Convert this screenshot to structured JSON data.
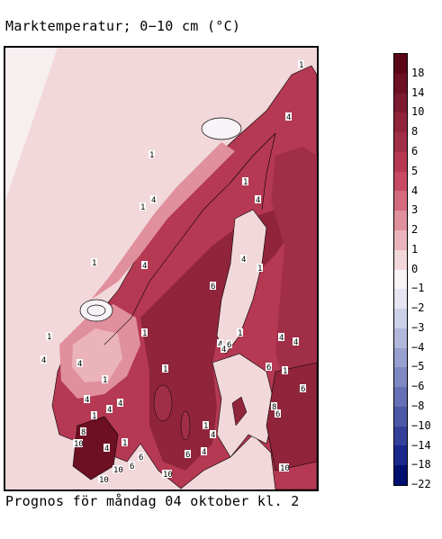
{
  "title": "Marktemperatur; 0−10 cm (°C)",
  "caption": "Prognos för måndag 04 oktober kl. 2",
  "legend": {
    "labels": [
      "18",
      "14",
      "10",
      "8",
      "6",
      "5",
      "4",
      "3",
      "2",
      "1",
      "0",
      "−1",
      "−2",
      "−3",
      "−4",
      "−5",
      "−6",
      "−8",
      "−10",
      "−14",
      "−18",
      "−22"
    ],
    "colors": [
      "#5c0718",
      "#6d1024",
      "#7e1a30",
      "#8f243b",
      "#a02e47",
      "#b53953",
      "#c64a63",
      "#d46a7d",
      "#e08f9d",
      "#ebb3bb",
      "#f2d8da",
      "#f7f3f7",
      "#e6e6f2",
      "#ccd0e8",
      "#b2b8dc",
      "#98a0d0",
      "#7f88c3",
      "#6570b6",
      "#4c58a8",
      "#33409a",
      "#1a288c",
      "#001070"
    ]
  },
  "map": {
    "background_color": "#f2d8da",
    "land_low_color": "#b53953",
    "land_mid_color": "#a02e47",
    "land_dark_color": "#8f243b",
    "mountain_color": "#e08f9d",
    "cold_peak_color": "#f7f3f7",
    "iso_labels": [
      "1",
      "4",
      "1",
      "1",
      "4",
      "4",
      "1",
      "1",
      "4",
      "4",
      "1",
      "4",
      "4",
      "1",
      "1",
      "4",
      "4",
      "1",
      "6",
      "1",
      "1",
      "6",
      "4",
      "4",
      "6",
      "1",
      "6",
      "8",
      "6",
      "4",
      "4",
      "1",
      "4",
      "10",
      "4",
      "10",
      "10",
      "6",
      "10",
      "6",
      "4",
      "4",
      "1",
      "1",
      "6",
      "10",
      "8"
    ]
  }
}
